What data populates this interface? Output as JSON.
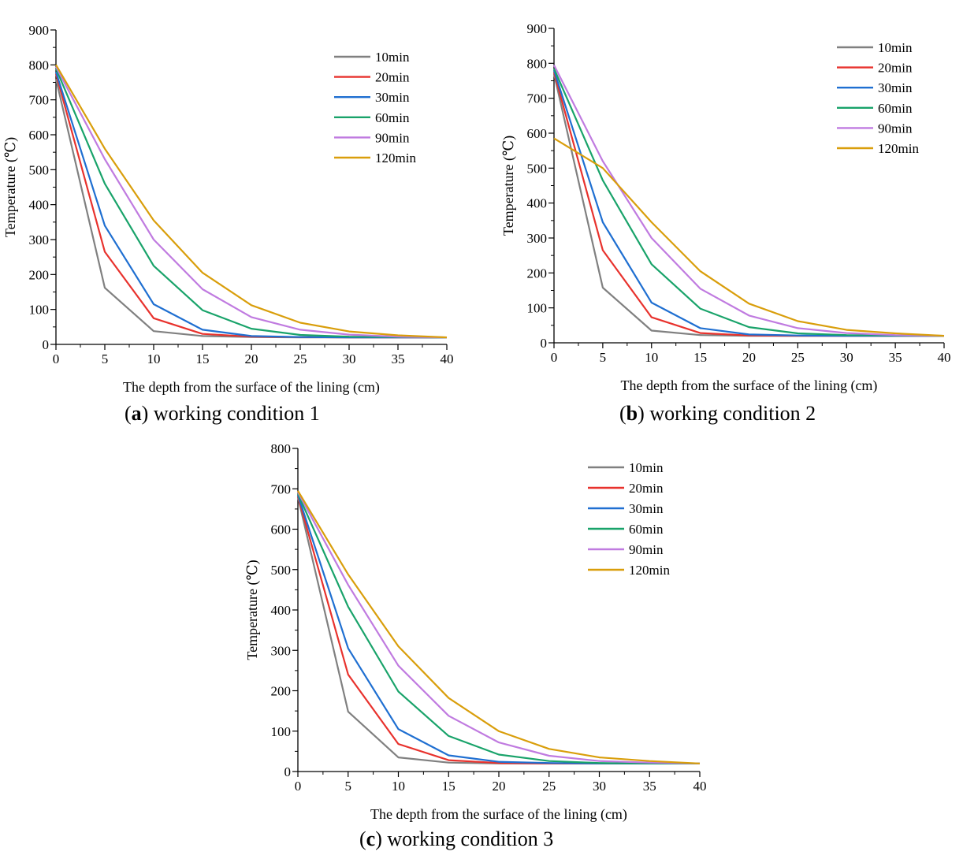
{
  "chart_data": [
    {
      "type": "line",
      "id": "a",
      "caption_letter": "a",
      "caption_text": "working condition 1",
      "xlabel": "The depth from the surface of the lining (cm)",
      "ylabel": "Temperature (℃)",
      "xlim": [
        0,
        40
      ],
      "ylim": [
        0,
        900
      ],
      "xticks": [
        0,
        5,
        10,
        15,
        20,
        25,
        30,
        35,
        40
      ],
      "yticks": [
        0,
        100,
        200,
        300,
        400,
        500,
        600,
        700,
        800,
        900
      ],
      "x": [
        0,
        5,
        10,
        15,
        20,
        25,
        30,
        35,
        40
      ],
      "legend_position": "top-right",
      "series": [
        {
          "name": "10min",
          "color": "#808080",
          "values": [
            760,
            162,
            38,
            24,
            21,
            20,
            20,
            20,
            20
          ]
        },
        {
          "name": "20min",
          "color": "#e8322d",
          "values": [
            775,
            265,
            75,
            30,
            22,
            21,
            20,
            20,
            20
          ]
        },
        {
          "name": "30min",
          "color": "#1f6fd1",
          "values": [
            780,
            340,
            115,
            42,
            24,
            21,
            20,
            20,
            20
          ]
        },
        {
          "name": "60min",
          "color": "#19a36a",
          "values": [
            790,
            460,
            225,
            98,
            45,
            27,
            22,
            21,
            20
          ]
        },
        {
          "name": "90min",
          "color": "#c07be0",
          "values": [
            795,
            530,
            300,
            158,
            78,
            42,
            28,
            22,
            20
          ]
        },
        {
          "name": "120min",
          "color": "#d99e0b",
          "values": [
            800,
            560,
            355,
            205,
            112,
            62,
            37,
            26,
            20
          ]
        }
      ]
    },
    {
      "type": "line",
      "id": "b",
      "caption_letter": "b",
      "caption_text": "working condition 2",
      "xlabel": "The depth from the surface of the lining (cm)",
      "ylabel": "Temperature (℃)",
      "xlim": [
        0,
        40
      ],
      "ylim": [
        0,
        900
      ],
      "xticks": [
        0,
        5,
        10,
        15,
        20,
        25,
        30,
        35,
        40
      ],
      "yticks": [
        0,
        100,
        200,
        300,
        400,
        500,
        600,
        700,
        800,
        900
      ],
      "x": [
        0,
        5,
        10,
        15,
        20,
        25,
        30,
        35,
        40
      ],
      "legend_position": "top-right",
      "series": [
        {
          "name": "10min",
          "color": "#808080",
          "values": [
            770,
            158,
            35,
            22,
            20,
            20,
            20,
            20,
            20
          ]
        },
        {
          "name": "20min",
          "color": "#e8322d",
          "values": [
            775,
            265,
            73,
            28,
            21,
            20,
            20,
            20,
            20
          ]
        },
        {
          "name": "30min",
          "color": "#1f6fd1",
          "values": [
            780,
            345,
            115,
            42,
            24,
            21,
            20,
            20,
            20
          ]
        },
        {
          "name": "60min",
          "color": "#19a36a",
          "values": [
            785,
            465,
            225,
            98,
            45,
            27,
            22,
            21,
            20
          ]
        },
        {
          "name": "90min",
          "color": "#c07be0",
          "values": [
            795,
            520,
            300,
            155,
            78,
            42,
            28,
            22,
            20
          ]
        },
        {
          "name": "120min",
          "color": "#d99e0b",
          "values": [
            585,
            500,
            345,
            205,
            112,
            62,
            37,
            27,
            20
          ]
        }
      ]
    },
    {
      "type": "line",
      "id": "c",
      "caption_letter": "c",
      "caption_text": "working condition 3",
      "xlabel": "The depth from the surface of the lining (cm)",
      "ylabel": "Temperature (℃)",
      "xlim": [
        0,
        40
      ],
      "ylim": [
        0,
        800
      ],
      "xticks": [
        0,
        5,
        10,
        15,
        20,
        25,
        30,
        35,
        40
      ],
      "yticks": [
        0,
        100,
        200,
        300,
        400,
        500,
        600,
        700,
        800
      ],
      "x": [
        0,
        5,
        10,
        15,
        20,
        25,
        30,
        35,
        40
      ],
      "legend_position": "top-right",
      "series": [
        {
          "name": "10min",
          "color": "#808080",
          "values": [
            680,
            148,
            35,
            22,
            20,
            20,
            20,
            20,
            20
          ]
        },
        {
          "name": "20min",
          "color": "#e8322d",
          "values": [
            682,
            240,
            68,
            28,
            21,
            20,
            20,
            20,
            20
          ]
        },
        {
          "name": "30min",
          "color": "#1f6fd1",
          "values": [
            685,
            305,
            105,
            40,
            24,
            21,
            20,
            20,
            20
          ]
        },
        {
          "name": "60min",
          "color": "#19a36a",
          "values": [
            688,
            408,
            198,
            88,
            42,
            26,
            21,
            20,
            20
          ]
        },
        {
          "name": "90min",
          "color": "#c07be0",
          "values": [
            692,
            462,
            262,
            138,
            72,
            39,
            26,
            22,
            20
          ]
        },
        {
          "name": "120min",
          "color": "#d99e0b",
          "values": [
            695,
            488,
            310,
            182,
            100,
            56,
            35,
            26,
            20
          ]
        }
      ]
    }
  ]
}
